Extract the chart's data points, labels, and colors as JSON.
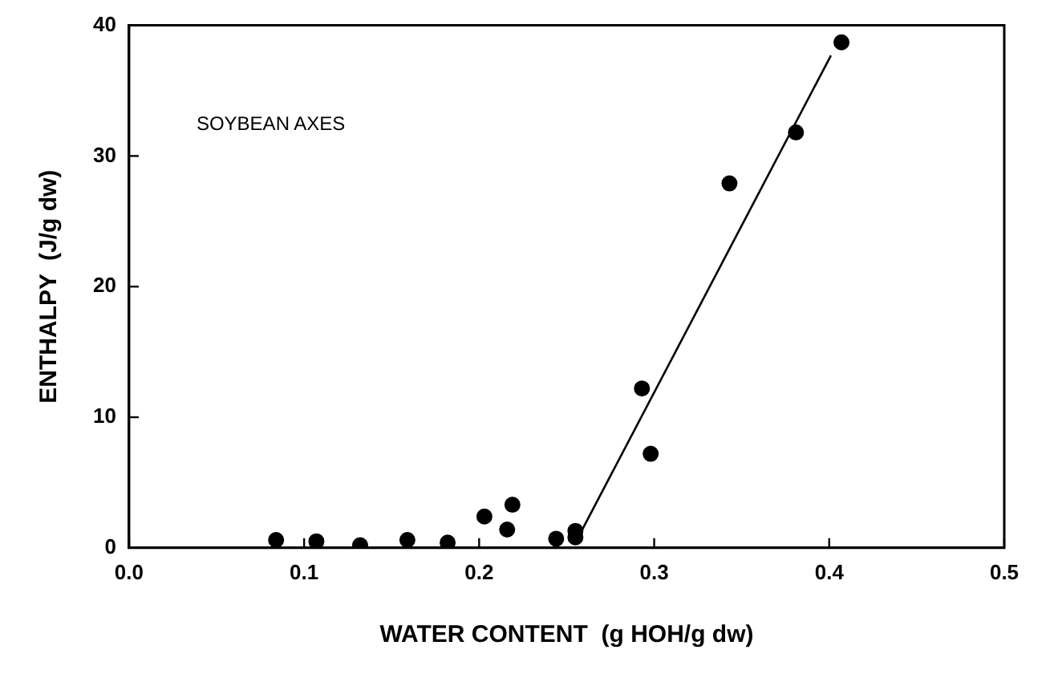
{
  "chart_data": {
    "type": "scatter",
    "xlabel": "WATER CONTENT  (g HOH/g dw)",
    "ylabel": "ENTHALPY  (J/g dw)",
    "annotations": [
      "SOYBEAN AXES"
    ],
    "series": [
      {
        "color": "#000000",
        "x": [
          0.084,
          0.107,
          0.132,
          0.159,
          0.182,
          0.203,
          0.216,
          0.219,
          0.244,
          0.255,
          0.255,
          0.293,
          0.298,
          0.343,
          0.381,
          0.407
        ],
        "values": [
          0.6,
          0.5,
          0.2,
          0.6,
          0.4,
          2.4,
          1.4,
          3.3,
          0.7,
          1.3,
          0.8,
          12.2,
          7.2,
          27.9,
          31.8,
          38.7
        ]
      },
      {
        "type": "line",
        "marker": "none",
        "color": "#000000",
        "x": [
          0.255,
          0.401
        ],
        "values": [
          0.4,
          37.7
        ]
      }
    ],
    "xlim": [
      0,
      0.5
    ],
    "xticks": [
      {
        "value": 0,
        "label": "0.0"
      },
      {
        "value": 0.1,
        "label": "0.1"
      },
      {
        "value": 0.2,
        "label": "0.2"
      },
      {
        "value": 0.3,
        "label": "0.3"
      },
      {
        "value": 0.4,
        "label": "0.4"
      },
      {
        "value": 0.5,
        "label": "0.5"
      }
    ],
    "ylim": [
      0,
      40
    ],
    "yticks": [
      0,
      10,
      20,
      30,
      40
    ],
    "grid": false,
    "legend": false,
    "marker": "circle"
  }
}
